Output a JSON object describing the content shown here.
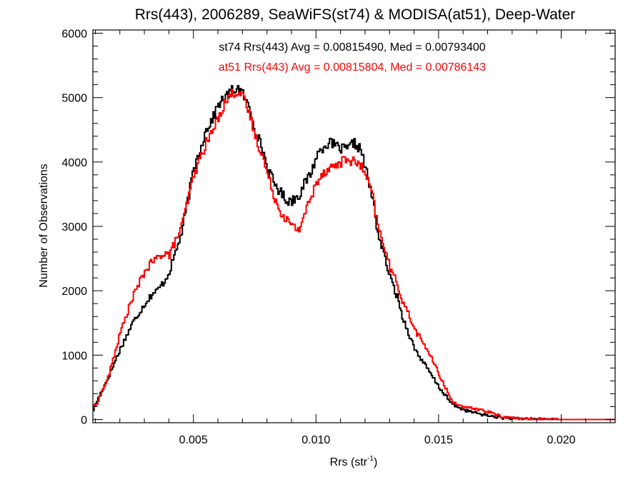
{
  "chart_data": {
    "type": "line",
    "step": true,
    "title": "Rrs(443), 2006289, SeaWiFS(st74) & MODISA(at51), Deep-Water",
    "xlabel": {
      "main": "Rrs (str",
      "superscript": "-1",
      "end": ")"
    },
    "ylabel": "Number of Observations",
    "xlim": [
      0.0009,
      0.0222
    ],
    "ylim": [
      -50,
      6050
    ],
    "xticks": [
      0.005,
      0.01,
      0.015,
      0.02
    ],
    "xtick_labels": [
      "0.005",
      "0.010",
      "0.015",
      "0.020"
    ],
    "yticks": [
      0,
      1000,
      2000,
      3000,
      4000,
      5000,
      6000
    ],
    "ytick_labels": [
      "0",
      "1000",
      "2000",
      "3000",
      "4000",
      "5000",
      "6000"
    ],
    "grid": false,
    "legend_position": "top-center",
    "series": [
      {
        "name": "st74",
        "label": "st74 Rrs(443) Avg = 0.00815490, Med = 0.00793400",
        "color": "#000000",
        "x": [
          0.0009,
          0.001,
          0.0015,
          0.002,
          0.0025,
          0.003,
          0.0033,
          0.0035,
          0.0038,
          0.004,
          0.0045,
          0.005,
          0.0055,
          0.0058,
          0.006,
          0.0063,
          0.0065,
          0.0068,
          0.007,
          0.0073,
          0.0075,
          0.0078,
          0.008,
          0.0083,
          0.0085,
          0.0088,
          0.009,
          0.0093,
          0.0095,
          0.0098,
          0.01,
          0.0103,
          0.0105,
          0.0108,
          0.011,
          0.0113,
          0.0115,
          0.0118,
          0.012,
          0.0123,
          0.0125,
          0.0128,
          0.013,
          0.0133,
          0.0135,
          0.0138,
          0.014,
          0.0145,
          0.015,
          0.0155,
          0.016,
          0.0165,
          0.017,
          0.0175,
          0.018,
          0.019,
          0.02,
          0.0222
        ],
        "y": [
          150,
          250,
          650,
          1100,
          1500,
          1800,
          1950,
          2000,
          2150,
          2300,
          2900,
          3900,
          4500,
          4700,
          4900,
          5000,
          5100,
          5150,
          5050,
          4800,
          4500,
          4200,
          3900,
          3650,
          3550,
          3400,
          3400,
          3500,
          3650,
          3850,
          4100,
          4250,
          4300,
          4250,
          4200,
          4200,
          4300,
          4200,
          3900,
          3400,
          2900,
          2500,
          2200,
          1900,
          1600,
          1300,
          1100,
          800,
          500,
          250,
          150,
          100,
          60,
          30,
          15,
          5,
          0,
          0
        ]
      },
      {
        "name": "at51",
        "label": "at51 Rrs(443) Avg = 0.00815804, Med = 0.00786143",
        "color": "#ff0000",
        "x": [
          0.0009,
          0.001,
          0.0015,
          0.002,
          0.0025,
          0.003,
          0.0033,
          0.0035,
          0.0038,
          0.004,
          0.0045,
          0.005,
          0.0055,
          0.0058,
          0.006,
          0.0063,
          0.0065,
          0.0068,
          0.007,
          0.0073,
          0.0075,
          0.0078,
          0.008,
          0.0083,
          0.0085,
          0.0088,
          0.009,
          0.0093,
          0.0095,
          0.0098,
          0.01,
          0.0103,
          0.0105,
          0.0108,
          0.011,
          0.0113,
          0.0115,
          0.0118,
          0.012,
          0.0123,
          0.0125,
          0.0128,
          0.013,
          0.0133,
          0.0135,
          0.0138,
          0.014,
          0.0145,
          0.015,
          0.0155,
          0.016,
          0.0165,
          0.017,
          0.0175,
          0.018,
          0.019,
          0.02,
          0.0222
        ],
        "y": [
          200,
          220,
          650,
          1350,
          1900,
          2300,
          2450,
          2500,
          2600,
          2550,
          3000,
          3800,
          4300,
          4500,
          4700,
          4950,
          5050,
          5100,
          5000,
          4700,
          4400,
          4100,
          3800,
          3450,
          3250,
          3100,
          3000,
          2950,
          3200,
          3450,
          3700,
          3850,
          3900,
          3950,
          4000,
          4050,
          4000,
          3950,
          3800,
          3450,
          3000,
          2650,
          2350,
          2100,
          1850,
          1600,
          1400,
          1100,
          700,
          300,
          180,
          170,
          120,
          50,
          20,
          5,
          0,
          0
        ]
      }
    ]
  }
}
